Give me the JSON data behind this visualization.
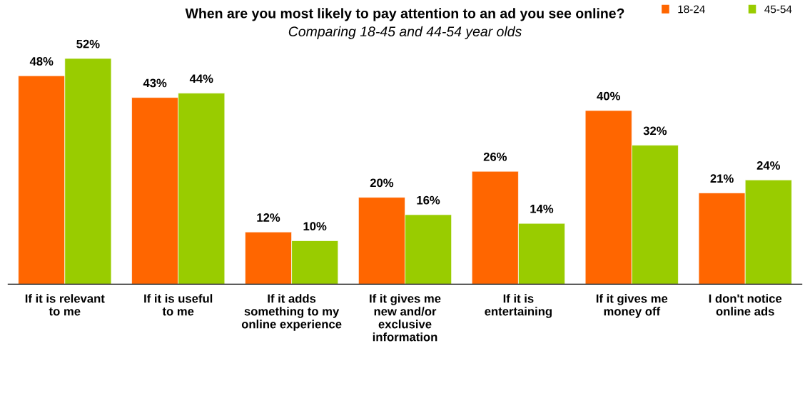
{
  "chart_data": {
    "type": "bar",
    "title": "When are you most likely to pay attention to an ad you see online?",
    "subtitle": "Comparing 18-45 and 44-54 year olds",
    "categories": [
      "If it is relevant to me",
      "If it is useful to me",
      "If it adds something to my online experience",
      "If it gives me new and/or exclusive information",
      "If it is entertaining",
      "If it gives me money off",
      "I don't notice online ads"
    ],
    "series": [
      {
        "name": "18-24",
        "color": "#ff6600",
        "values": [
          48,
          43,
          12,
          20,
          26,
          40,
          21
        ],
        "value_labels": [
          "48%",
          "43%",
          "12%",
          "20%",
          "26%",
          "40%",
          "21%"
        ]
      },
      {
        "name": "45-54",
        "color": "#99cc00",
        "values": [
          52,
          44,
          10,
          16,
          14,
          32,
          24
        ],
        "value_labels": [
          "52%",
          "44%",
          "10%",
          "16%",
          "14%",
          "32%",
          "24%"
        ]
      }
    ],
    "legend": "top right",
    "grid": false
  }
}
